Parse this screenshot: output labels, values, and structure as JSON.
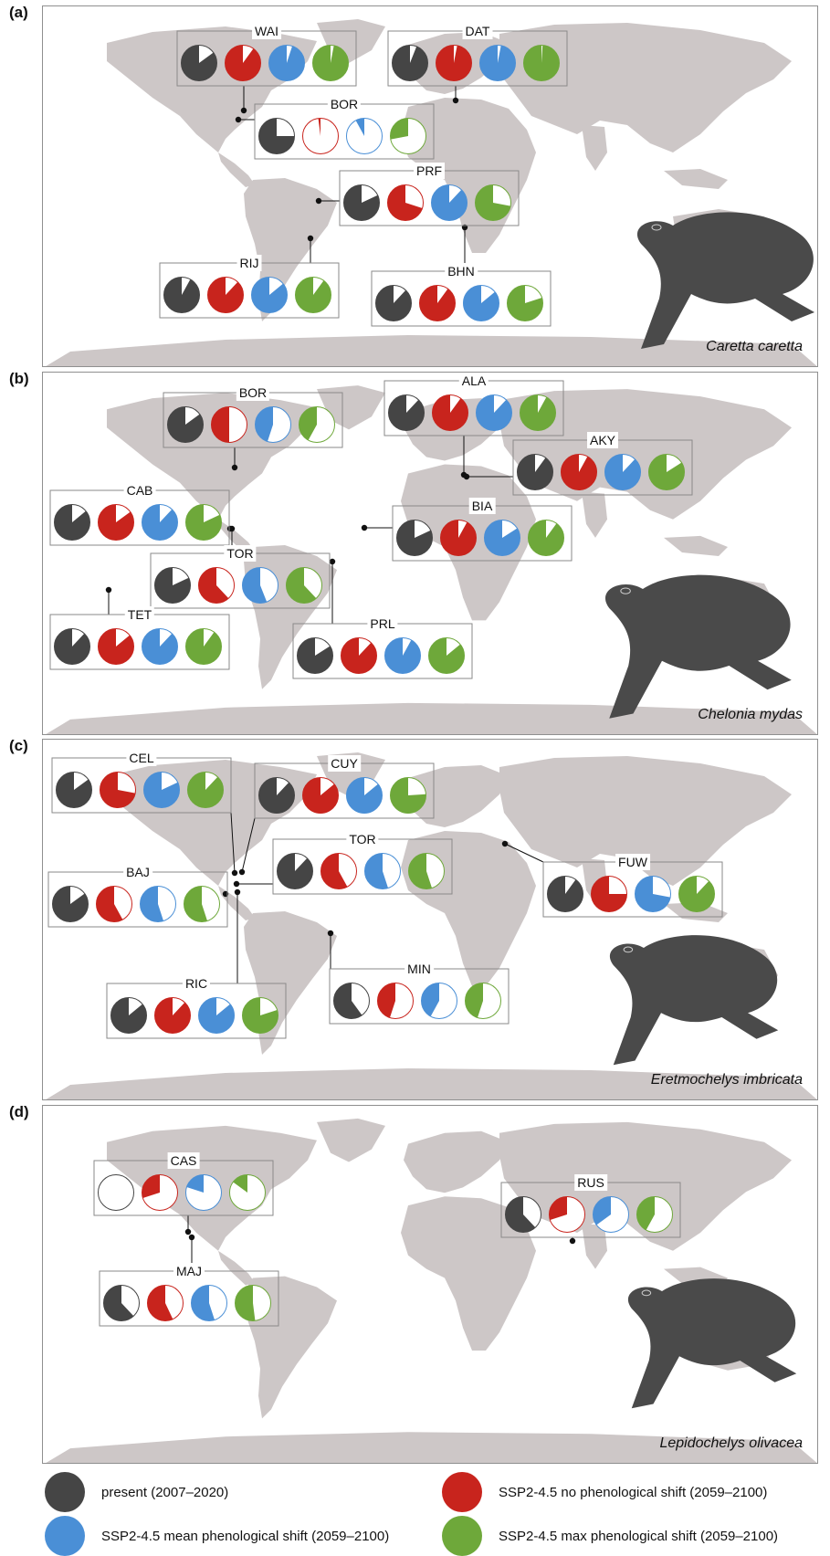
{
  "colors": {
    "present": "#454545",
    "no_shift": "#c8241d",
    "mean_shift": "#4a8fd6",
    "max_shift": "#6ea83a",
    "land": "#cdc7c7"
  },
  "legend": [
    {
      "key": "present",
      "label": "present (2007–2020)"
    },
    {
      "key": "no_shift",
      "label": "SSP2-4.5 no phenological shift (2059–2100)"
    },
    {
      "key": "mean_shift",
      "label": "SSP2-4.5 mean phenological shift (2059–2100)"
    },
    {
      "key": "max_shift",
      "label": "SSP2-4.5 max phenological shift (2059–2100)"
    }
  ],
  "chart_data": [
    {
      "type": "pie",
      "panel": "(a)",
      "species": "Caretta caretta",
      "series_order": [
        "present",
        "no_shift",
        "mean_shift",
        "max_shift"
      ],
      "sites": [
        {
          "label": "WAI",
          "values": [
            0.85,
            0.9,
            0.95,
            0.97
          ]
        },
        {
          "label": "DAT",
          "values": [
            0.94,
            0.97,
            0.97,
            0.99
          ]
        },
        {
          "label": "BOR",
          "values": [
            0.75,
            0.02,
            0.08,
            0.28
          ]
        },
        {
          "label": "PRF",
          "values": [
            0.82,
            0.7,
            0.88,
            0.72
          ]
        },
        {
          "label": "RIJ",
          "values": [
            0.92,
            0.88,
            0.86,
            0.9
          ]
        },
        {
          "label": "BHN",
          "values": [
            0.88,
            0.9,
            0.86,
            0.8
          ]
        }
      ]
    },
    {
      "type": "pie",
      "panel": "(b)",
      "species": "Chelonia mydas",
      "series_order": [
        "present",
        "no_shift",
        "mean_shift",
        "max_shift"
      ],
      "sites": [
        {
          "label": "BOR",
          "values": [
            0.85,
            0.5,
            0.45,
            0.42
          ]
        },
        {
          "label": "ALA",
          "values": [
            0.88,
            0.9,
            0.88,
            0.92
          ]
        },
        {
          "label": "AKY",
          "values": [
            0.9,
            0.92,
            0.88,
            0.84
          ]
        },
        {
          "label": "CAB",
          "values": [
            0.86,
            0.85,
            0.88,
            0.82
          ]
        },
        {
          "label": "BIA",
          "values": [
            0.82,
            0.92,
            0.84,
            0.9
          ]
        },
        {
          "label": "TOR",
          "values": [
            0.82,
            0.62,
            0.56,
            0.62
          ]
        },
        {
          "label": "TET",
          "values": [
            0.88,
            0.86,
            0.88,
            0.9
          ]
        },
        {
          "label": "PRL",
          "values": [
            0.84,
            0.88,
            0.92,
            0.86
          ]
        }
      ]
    },
    {
      "type": "pie",
      "panel": "(c)",
      "species": "Eretmochelys imbricata",
      "series_order": [
        "present",
        "no_shift",
        "mean_shift",
        "max_shift"
      ],
      "sites": [
        {
          "label": "CEL",
          "values": [
            0.85,
            0.72,
            0.82,
            0.88
          ]
        },
        {
          "label": "CUY",
          "values": [
            0.88,
            0.86,
            0.86,
            0.76
          ]
        },
        {
          "label": "TOR",
          "values": [
            0.88,
            0.58,
            0.55,
            0.55
          ]
        },
        {
          "label": "BAJ",
          "values": [
            0.85,
            0.58,
            0.55,
            0.55
          ]
        },
        {
          "label": "FUW",
          "values": [
            0.9,
            0.75,
            0.72,
            0.88
          ]
        },
        {
          "label": "RIC",
          "values": [
            0.86,
            0.88,
            0.86,
            0.8
          ]
        },
        {
          "label": "MIN",
          "values": [
            0.6,
            0.45,
            0.42,
            0.45
          ]
        }
      ]
    },
    {
      "type": "pie",
      "panel": "(d)",
      "species": "Lepidochelys olivacea",
      "series_order": [
        "present",
        "no_shift",
        "mean_shift",
        "max_shift"
      ],
      "sites": [
        {
          "label": "CAS",
          "values": [
            null,
            0.3,
            0.2,
            0.15
          ]
        },
        {
          "label": "RUS",
          "values": [
            0.62,
            0.3,
            0.35,
            0.42
          ]
        },
        {
          "label": "MAJ",
          "values": [
            0.62,
            0.57,
            0.55,
            0.52
          ]
        }
      ]
    }
  ]
}
